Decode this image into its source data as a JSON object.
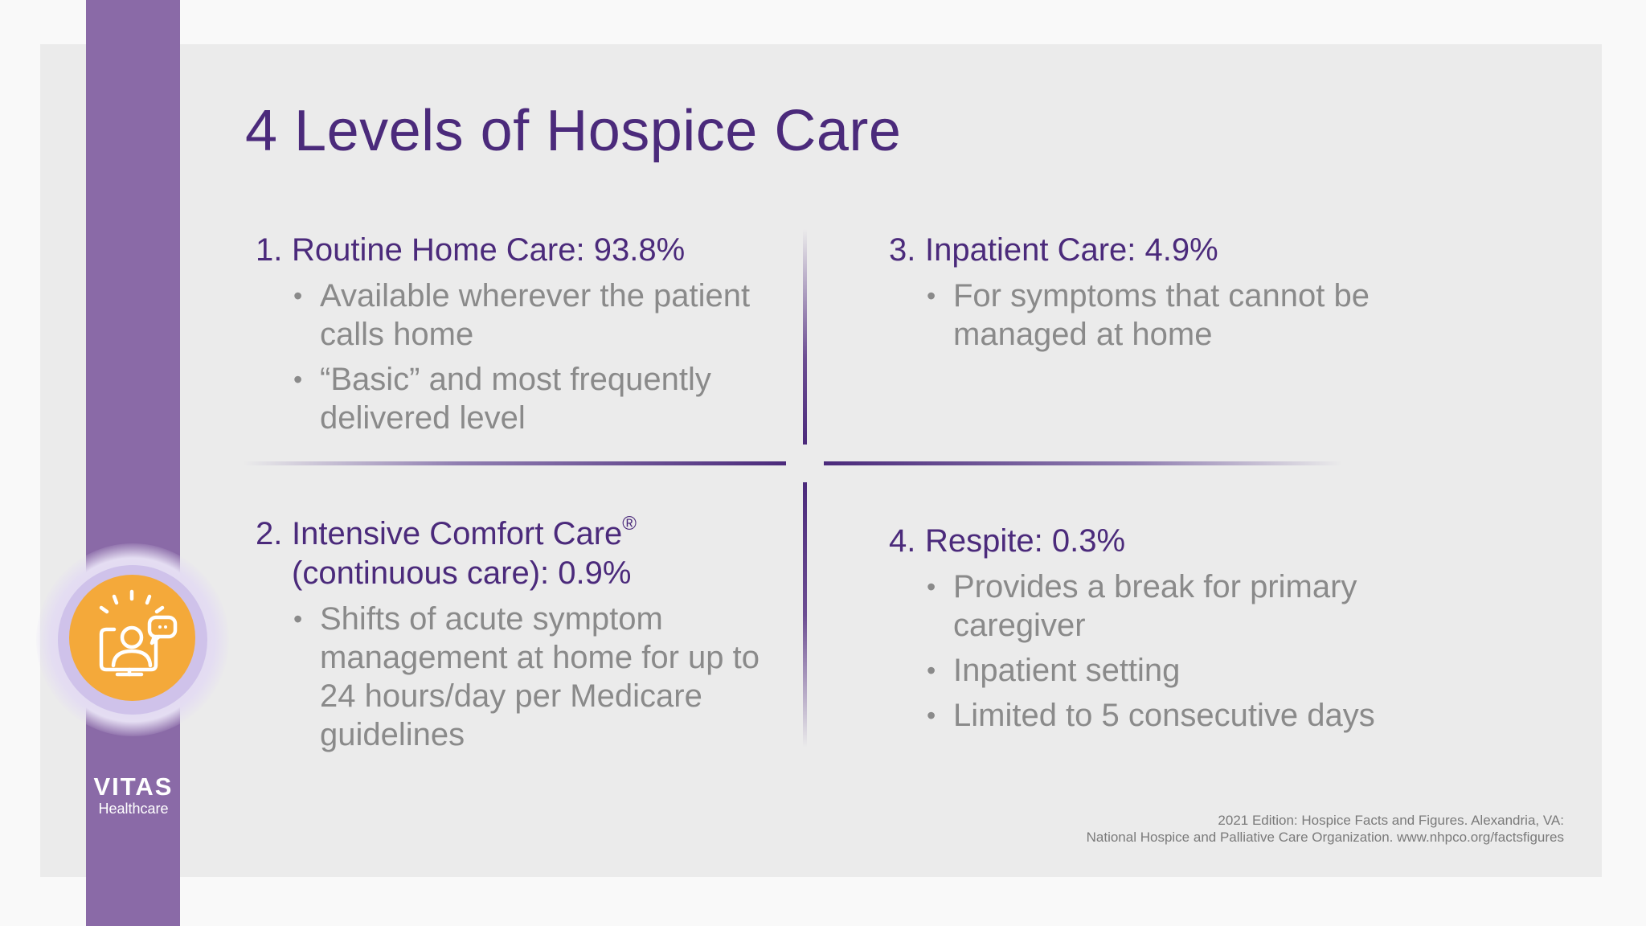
{
  "slide": {
    "title": "4 Levels of Hospice Care"
  },
  "quadrants": [
    {
      "number": "1.",
      "heading": "Routine Home Care: 93.8%",
      "bullets": [
        "Available wherever the patient calls home",
        "“Basic” and most frequently delivered level"
      ]
    },
    {
      "number": "2.",
      "heading_line1": "Intensive Comfort Care",
      "heading_mark": "®",
      "heading_line2": "(continuous care): 0.9%",
      "bullets": [
        "Shifts of acute symptom management at home for up to 24 hours/day per Medicare guidelines"
      ]
    },
    {
      "number": "3.",
      "heading": "Inpatient Care: 4.9%",
      "bullets": [
        "For symptoms that cannot be managed at home"
      ]
    },
    {
      "number": "4.",
      "heading": "Respite: 0.3%",
      "bullets": [
        "Provides a break for primary caregiver",
        "Inpatient setting",
        "Limited to 5 consecutive days"
      ]
    }
  ],
  "bullet_glyph": "•",
  "logo": {
    "brand": "VITAS",
    "sub": "Healthcare"
  },
  "citation": {
    "line1": "2021 Edition: Hospice Facts and Figures. Alexandria, VA:",
    "line2": "National Hospice and Palliative Care Organization. www.nhpco.org/factsfigures"
  },
  "colors": {
    "accent_purple": "#4b2a7b",
    "sidebar_purple": "#8a6aa7",
    "icon_orange": "#f4a93a",
    "body_gray": "#8a8a8a"
  },
  "icons": {
    "badge": "person-at-monitor-chat-icon"
  }
}
